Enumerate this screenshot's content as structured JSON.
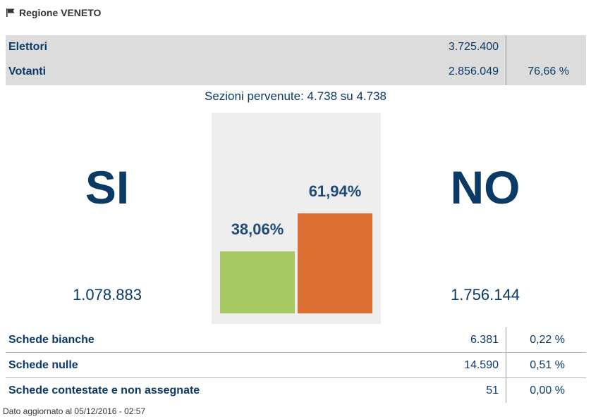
{
  "header": {
    "title": "Regione VENETO",
    "icon": "flag-icon"
  },
  "summary": {
    "rows": [
      {
        "label": "Elettori",
        "value": "3.725.400",
        "percent": ""
      },
      {
        "label": "Votanti",
        "value": "2.856.049",
        "percent": "76,66 %"
      }
    ]
  },
  "sezioni": "Sezioni pervenute: 4.738 su 4.738",
  "si": {
    "label": "SI",
    "count": "1.078.883"
  },
  "no": {
    "label": "NO",
    "count": "1.756.144"
  },
  "colors": {
    "si": "#a6c964",
    "no": "#de6f33",
    "chart_bg": "#eeeeee"
  },
  "chart_data": {
    "type": "bar",
    "categories": [
      "SI",
      "NO"
    ],
    "values": [
      38.06,
      61.94
    ],
    "value_labels": [
      "38,06%",
      "61,94%"
    ],
    "ylim": [
      0,
      100
    ],
    "grid": false
  },
  "details": {
    "rows": [
      {
        "label": "Schede bianche",
        "value": "6.381",
        "percent": "0,22 %"
      },
      {
        "label": "Schede nulle",
        "value": "14.590",
        "percent": "0,51 %"
      },
      {
        "label": "Schede contestate e non assegnate",
        "value": "51",
        "percent": "0,00 %"
      }
    ]
  },
  "footer": "Dato aggiornato al 05/12/2016 - 02:57"
}
